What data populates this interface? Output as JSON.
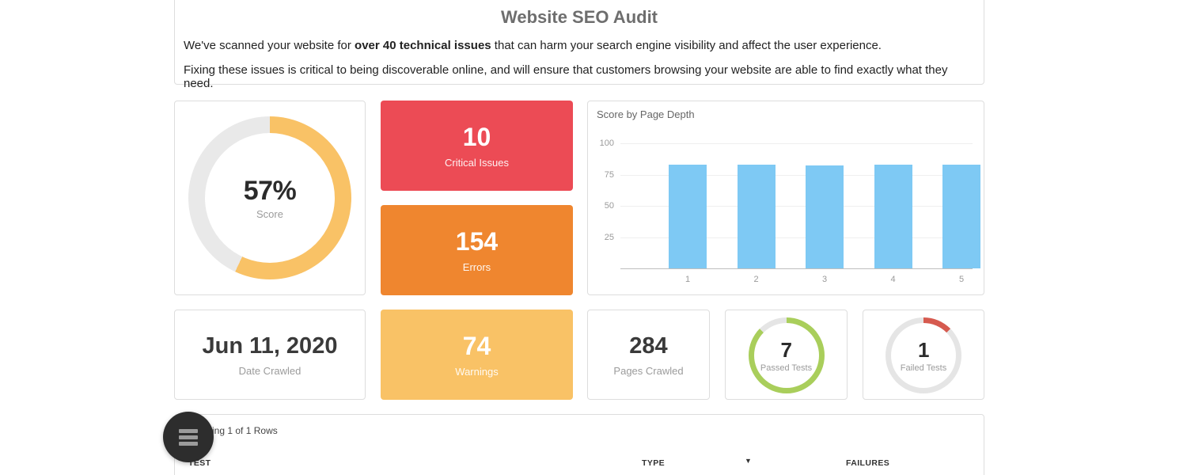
{
  "header": {
    "title": "Website SEO Audit",
    "p1_pre": "We've scanned your website for ",
    "p1_bold": "over 40 technical issues",
    "p1_post": " that can harm your search engine visibility and affect the user experience.",
    "p2": "Fixing these issues is critical to being discoverable online, and will ensure that customers browsing your website are able to find exactly what they need."
  },
  "score_donut": {
    "value": "57%",
    "label": "Score",
    "percent": 57,
    "arc_color": "#F9C266",
    "track_color": "#E9E9E9"
  },
  "stat_cards": {
    "critical": {
      "value": "10",
      "label": "Critical Issues",
      "bg": "#EC4B55"
    },
    "errors": {
      "value": "154",
      "label": "Errors",
      "bg": "#EF862F"
    },
    "warnings": {
      "value": "74",
      "label": "Warnings",
      "bg": "#F9C266"
    },
    "date_crawled": {
      "value": "Jun 11, 2020",
      "label": "Date Crawled"
    },
    "pages_crawled": {
      "value": "284",
      "label": "Pages Crawled"
    }
  },
  "passed_donut": {
    "value": "7",
    "label": "Passed Tests",
    "percent": 87.5,
    "arc_color": "#A9CE5B",
    "track_color": "#E5E5E5"
  },
  "failed_donut": {
    "value": "1",
    "label": "Failed Tests",
    "percent": 12.5,
    "arc_color": "#D65A4F",
    "track_color": "#E5E5E5"
  },
  "chart_data": {
    "type": "bar",
    "title": "Score by Page Depth",
    "categories": [
      "1",
      "2",
      "3",
      "4",
      "5"
    ],
    "values": [
      83,
      83,
      82,
      83,
      83
    ],
    "xlabel": "",
    "ylabel": "",
    "ylim": [
      0,
      100
    ],
    "yticks": [
      25,
      50,
      75,
      100
    ],
    "bar_color": "#7EC9F4",
    "grid": true,
    "legend": false
  },
  "table": {
    "status": "Showing 1 of 1 Rows",
    "columns": [
      {
        "label": "TEST"
      },
      {
        "label": "TYPE"
      },
      {
        "label": "FAILURES"
      }
    ],
    "sort_icon": "▼"
  }
}
